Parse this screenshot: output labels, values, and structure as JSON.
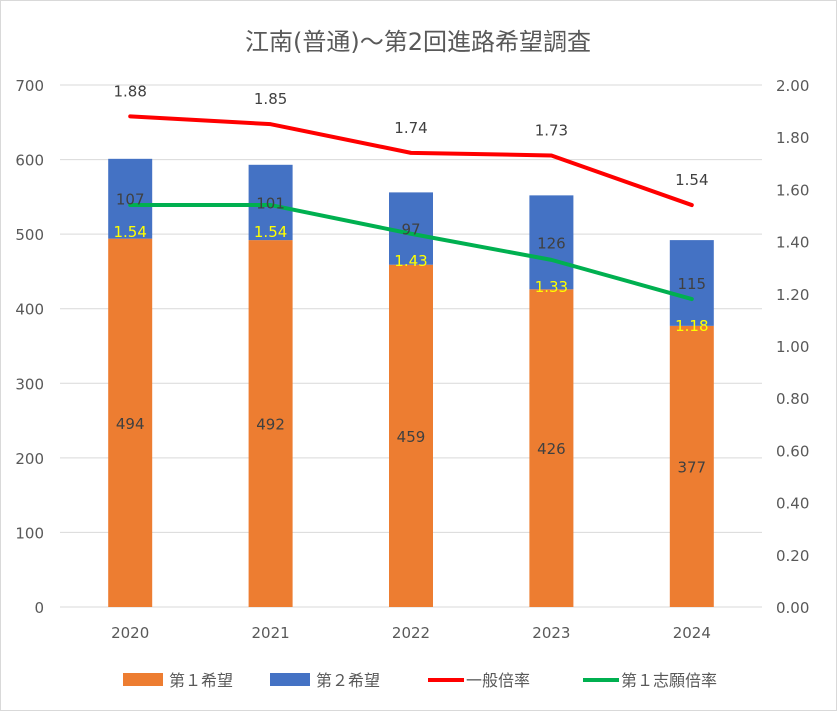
{
  "chart_data": {
    "type": "bar+line",
    "title": "江南(普通)～第2回進路希望調査",
    "categories": [
      "2020",
      "2021",
      "2022",
      "2023",
      "2024"
    ],
    "left_axis": {
      "ylim": [
        0,
        700
      ],
      "ticks": [
        "0",
        "100",
        "200",
        "300",
        "400",
        "500",
        "600",
        "700"
      ]
    },
    "right_axis": {
      "ylim": [
        0,
        2.0
      ],
      "ticks": [
        "0.00",
        "0.20",
        "0.40",
        "0.60",
        "0.80",
        "1.00",
        "1.20",
        "1.40",
        "1.60",
        "1.80",
        "2.00"
      ]
    },
    "grid": true,
    "legend_position": "bottom",
    "series": [
      {
        "name": "第１希望",
        "type": "stacked-bar",
        "axis": "left",
        "color": "#ed7d31",
        "label_color": "#404040",
        "values": [
          494,
          492,
          459,
          426,
          377
        ],
        "labels": [
          "494",
          "492",
          "459",
          "426",
          "377"
        ]
      },
      {
        "name": "第２希望",
        "type": "stacked-bar",
        "axis": "left",
        "color": "#4472c4",
        "label_color": "#404040",
        "values": [
          107,
          101,
          97,
          126,
          115
        ],
        "labels": [
          "107",
          "101",
          "97",
          "126",
          "115"
        ]
      },
      {
        "name": "一般倍率",
        "type": "line",
        "axis": "right",
        "color": "#ff0000",
        "label_color": "#404040",
        "values": [
          1.88,
          1.85,
          1.74,
          1.73,
          1.54
        ],
        "labels": [
          "1.88",
          "1.85",
          "1.74",
          "1.73",
          "1.54"
        ]
      },
      {
        "name": "第１志願倍率",
        "type": "line",
        "axis": "right",
        "color": "#00b050",
        "label_color": "#ffff00",
        "values": [
          1.54,
          1.54,
          1.43,
          1.33,
          1.18
        ],
        "labels": [
          "1.54",
          "1.54",
          "1.43",
          "1.33",
          "1.18"
        ]
      }
    ]
  }
}
